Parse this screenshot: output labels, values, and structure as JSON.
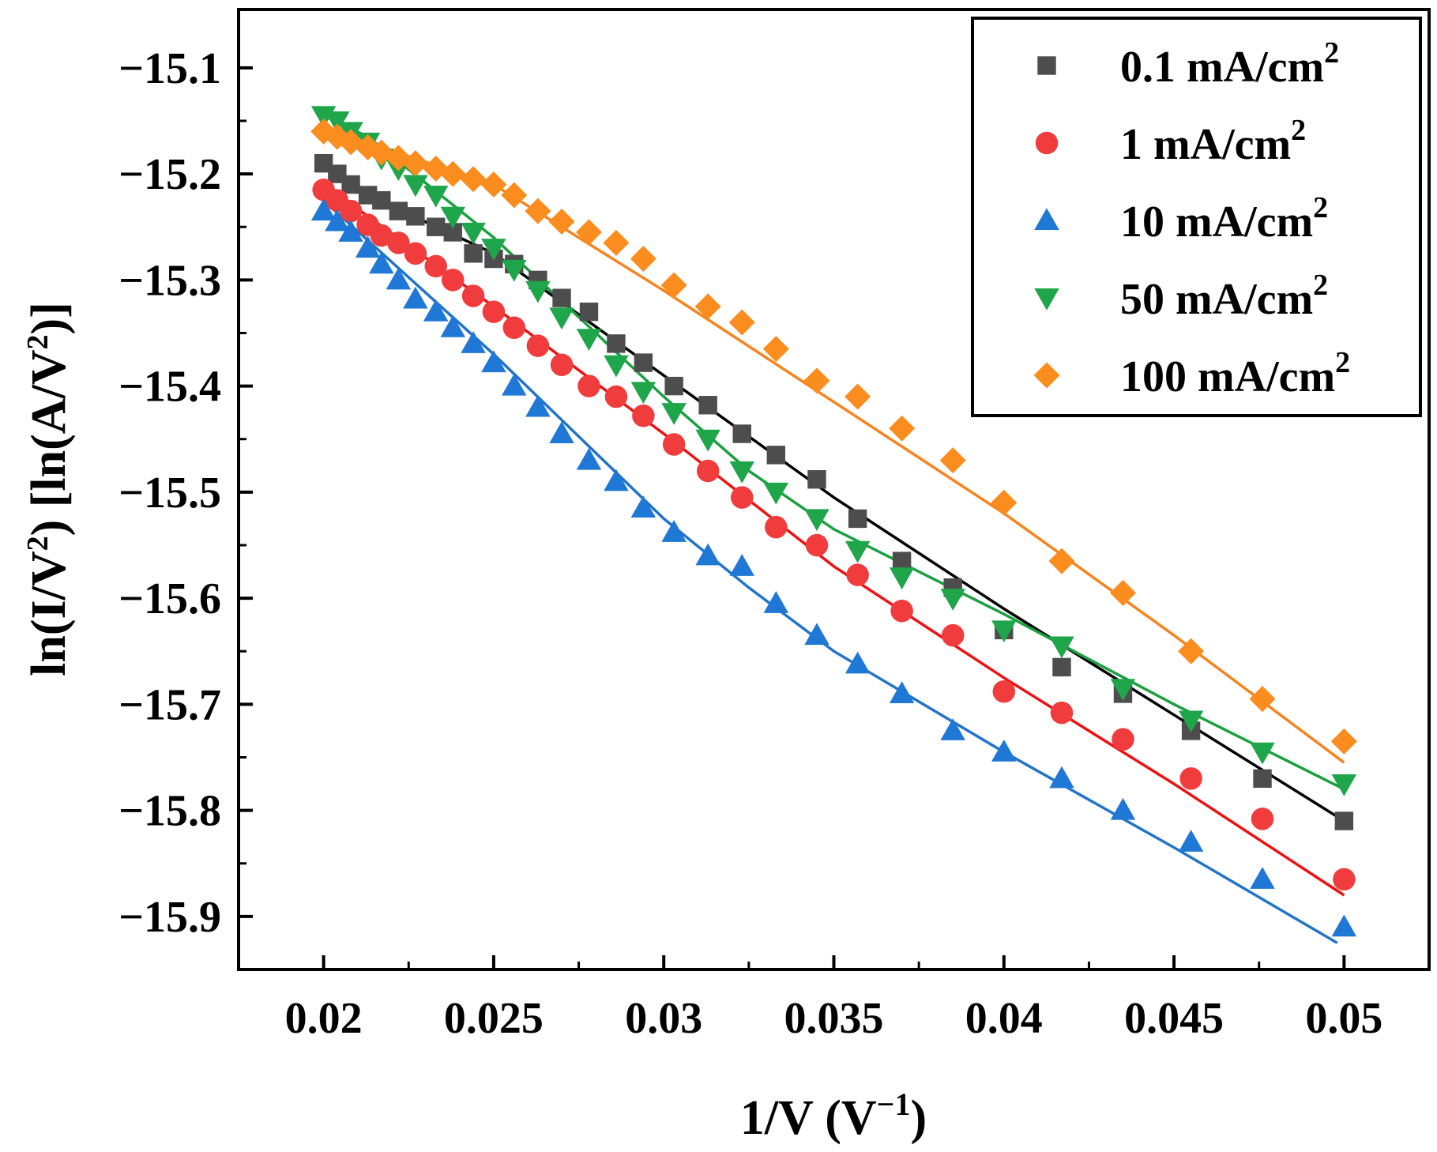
{
  "chart_data": {
    "type": "scatter",
    "title": "",
    "xlabel": {
      "main": "1/V (V",
      "sup": "−1",
      "end": ")"
    },
    "ylabel": {
      "p1": "ln(I/V",
      "sup1": "2",
      "p2": ") [ln(A/V",
      "sup2": "2",
      "p3": ")]"
    },
    "xlim": [
      0.0175,
      0.0525
    ],
    "ylim": [
      -15.95,
      -15.045
    ],
    "x_ticks": [
      0.02,
      0.025,
      0.03,
      0.035,
      0.04,
      0.045,
      0.05
    ],
    "x_tick_labels": [
      "0.02",
      "0.025",
      "0.03",
      "0.035",
      "0.04",
      "0.045",
      "0.05"
    ],
    "y_ticks": [
      -15.1,
      -15.2,
      -15.3,
      -15.4,
      -15.5,
      -15.6,
      -15.7,
      -15.8,
      -15.9
    ],
    "y_tick_labels": [
      "−15.1",
      "−15.2",
      "−15.3",
      "−15.4",
      "−15.5",
      "−15.6",
      "−15.7",
      "−15.8",
      "−15.9"
    ],
    "legend_position": "top-right",
    "series": [
      {
        "name": "0.1 mA/cm",
        "name_sup": "2",
        "color": "#4d4d4d",
        "line_color": "#000000",
        "marker": "square",
        "x": [
          0.02,
          0.0204,
          0.0208,
          0.0213,
          0.0217,
          0.0222,
          0.0227,
          0.0233,
          0.0238,
          0.0244,
          0.025,
          0.0256,
          0.0263,
          0.027,
          0.0278,
          0.0286,
          0.0294,
          0.0303,
          0.0313,
          0.0323,
          0.0333,
          0.0345,
          0.0357,
          0.037,
          0.0385,
          0.04,
          0.0417,
          0.0435,
          0.0455,
          0.0476,
          0.05
        ],
        "y": [
          -15.19,
          -15.2,
          -15.21,
          -15.22,
          -15.225,
          -15.235,
          -15.24,
          -15.25,
          -15.255,
          -15.275,
          -15.28,
          -15.285,
          -15.3,
          -15.317,
          -15.33,
          -15.36,
          -15.378,
          -15.4,
          -15.418,
          -15.445,
          -15.465,
          -15.488,
          -15.525,
          -15.565,
          -15.59,
          -15.63,
          -15.665,
          -15.69,
          -15.725,
          -15.77,
          -15.81
        ],
        "fit": [
          [
            0.0213,
            -15.22
          ],
          [
            0.025,
            -15.275
          ],
          [
            0.03,
            -15.39
          ],
          [
            0.035,
            -15.505
          ],
          [
            0.04,
            -15.61
          ],
          [
            0.045,
            -15.71
          ],
          [
            0.05,
            -15.81
          ]
        ]
      },
      {
        "name": "1 mA/cm",
        "name_sup": "2",
        "color": "#f03c3c",
        "line_color": "#ee1111",
        "marker": "circle",
        "x": [
          0.02,
          0.0204,
          0.0208,
          0.0213,
          0.0217,
          0.0222,
          0.0227,
          0.0233,
          0.0238,
          0.0244,
          0.025,
          0.0256,
          0.0263,
          0.027,
          0.0278,
          0.0286,
          0.0294,
          0.0303,
          0.0313,
          0.0323,
          0.0333,
          0.0345,
          0.0357,
          0.037,
          0.0385,
          0.04,
          0.0417,
          0.0435,
          0.0455,
          0.0476,
          0.05
        ],
        "y": [
          -15.215,
          -15.225,
          -15.235,
          -15.248,
          -15.258,
          -15.265,
          -15.275,
          -15.287,
          -15.3,
          -15.315,
          -15.33,
          -15.345,
          -15.362,
          -15.38,
          -15.4,
          -15.41,
          -15.428,
          -15.455,
          -15.48,
          -15.505,
          -15.533,
          -15.55,
          -15.578,
          -15.612,
          -15.635,
          -15.688,
          -15.708,
          -15.733,
          -15.77,
          -15.808,
          -15.865
        ],
        "fit": [
          [
            0.02,
            -15.21
          ],
          [
            0.025,
            -15.325
          ],
          [
            0.03,
            -15.445
          ],
          [
            0.035,
            -15.57
          ],
          [
            0.04,
            -15.675
          ],
          [
            0.045,
            -15.775
          ],
          [
            0.05,
            -15.88
          ]
        ]
      },
      {
        "name": "10 mA/cm",
        "name_sup": "2",
        "color": "#1f77d6",
        "line_color": "#2274c9",
        "marker": "triangle-up",
        "x": [
          0.02,
          0.0204,
          0.0208,
          0.0213,
          0.0217,
          0.0222,
          0.0227,
          0.0233,
          0.0238,
          0.0244,
          0.025,
          0.0256,
          0.0263,
          0.027,
          0.0278,
          0.0286,
          0.0294,
          0.0303,
          0.0313,
          0.0323,
          0.0333,
          0.0345,
          0.0357,
          0.037,
          0.0385,
          0.04,
          0.0417,
          0.0435,
          0.0455,
          0.0476,
          0.05
        ],
        "y": [
          -15.235,
          -15.245,
          -15.255,
          -15.27,
          -15.285,
          -15.3,
          -15.318,
          -15.33,
          -15.345,
          -15.36,
          -15.378,
          -15.4,
          -15.42,
          -15.445,
          -15.47,
          -15.49,
          -15.515,
          -15.538,
          -15.56,
          -15.57,
          -15.605,
          -15.635,
          -15.662,
          -15.69,
          -15.725,
          -15.745,
          -15.77,
          -15.8,
          -15.83,
          -15.865,
          -15.91
        ],
        "fit": [
          [
            0.02,
            -15.225
          ],
          [
            0.025,
            -15.37
          ],
          [
            0.03,
            -15.525
          ],
          [
            0.0325,
            -15.59
          ],
          [
            0.035,
            -15.65
          ],
          [
            0.04,
            -15.745
          ],
          [
            0.045,
            -15.835
          ],
          [
            0.0498,
            -15.925
          ]
        ]
      },
      {
        "name": "50 mA/cm",
        "name_sup": "2",
        "color": "#1fa64a",
        "line_color": "#1aa040",
        "marker": "triangle-down",
        "x": [
          0.02,
          0.0204,
          0.0208,
          0.0213,
          0.0217,
          0.0222,
          0.0227,
          0.0233,
          0.0238,
          0.0244,
          0.025,
          0.0256,
          0.0263,
          0.027,
          0.0278,
          0.0286,
          0.0294,
          0.0303,
          0.0313,
          0.0323,
          0.0333,
          0.0345,
          0.0357,
          0.037,
          0.0385,
          0.04,
          0.0417,
          0.0435,
          0.0455,
          0.0476,
          0.05
        ],
        "y": [
          -15.145,
          -15.15,
          -15.16,
          -15.17,
          -15.185,
          -15.195,
          -15.21,
          -15.22,
          -15.24,
          -15.255,
          -15.27,
          -15.29,
          -15.31,
          -15.335,
          -15.355,
          -15.38,
          -15.405,
          -15.425,
          -15.45,
          -15.48,
          -15.5,
          -15.525,
          -15.555,
          -15.58,
          -15.6,
          -15.63,
          -15.645,
          -15.685,
          -15.715,
          -15.745,
          -15.775
        ],
        "fit": [
          [
            0.02,
            -15.145
          ],
          [
            0.0213,
            -15.165
          ],
          [
            0.025,
            -15.26
          ],
          [
            0.03,
            -15.41
          ],
          [
            0.0325,
            -15.48
          ],
          [
            0.035,
            -15.535
          ],
          [
            0.04,
            -15.615
          ],
          [
            0.045,
            -15.7
          ],
          [
            0.05,
            -15.78
          ]
        ]
      },
      {
        "name": "100 mA/cm",
        "name_sup": "2",
        "color": "#fb8c1e",
        "line_color": "#f7841e",
        "marker": "diamond",
        "x": [
          0.02,
          0.0204,
          0.0208,
          0.0213,
          0.0217,
          0.0222,
          0.0227,
          0.0233,
          0.0238,
          0.0244,
          0.025,
          0.0256,
          0.0263,
          0.027,
          0.0278,
          0.0286,
          0.0294,
          0.0303,
          0.0313,
          0.0323,
          0.0333,
          0.0345,
          0.0357,
          0.037,
          0.0385,
          0.04,
          0.0417,
          0.0435,
          0.0455,
          0.0476,
          0.05
        ],
        "y": [
          -15.16,
          -15.165,
          -15.17,
          -15.175,
          -15.18,
          -15.185,
          -15.19,
          -15.195,
          -15.2,
          -15.205,
          -15.21,
          -15.22,
          -15.235,
          -15.245,
          -15.255,
          -15.265,
          -15.28,
          -15.305,
          -15.325,
          -15.34,
          -15.365,
          -15.395,
          -15.41,
          -15.44,
          -15.47,
          -15.51,
          -15.565,
          -15.595,
          -15.65,
          -15.695,
          -15.735
        ],
        "fit": [
          [
            0.02,
            -15.16
          ],
          [
            0.0217,
            -15.175
          ],
          [
            0.025,
            -15.21
          ],
          [
            0.03,
            -15.31
          ],
          [
            0.035,
            -15.415
          ],
          [
            0.04,
            -15.52
          ],
          [
            0.045,
            -15.635
          ],
          [
            0.05,
            -15.755
          ]
        ]
      }
    ]
  }
}
